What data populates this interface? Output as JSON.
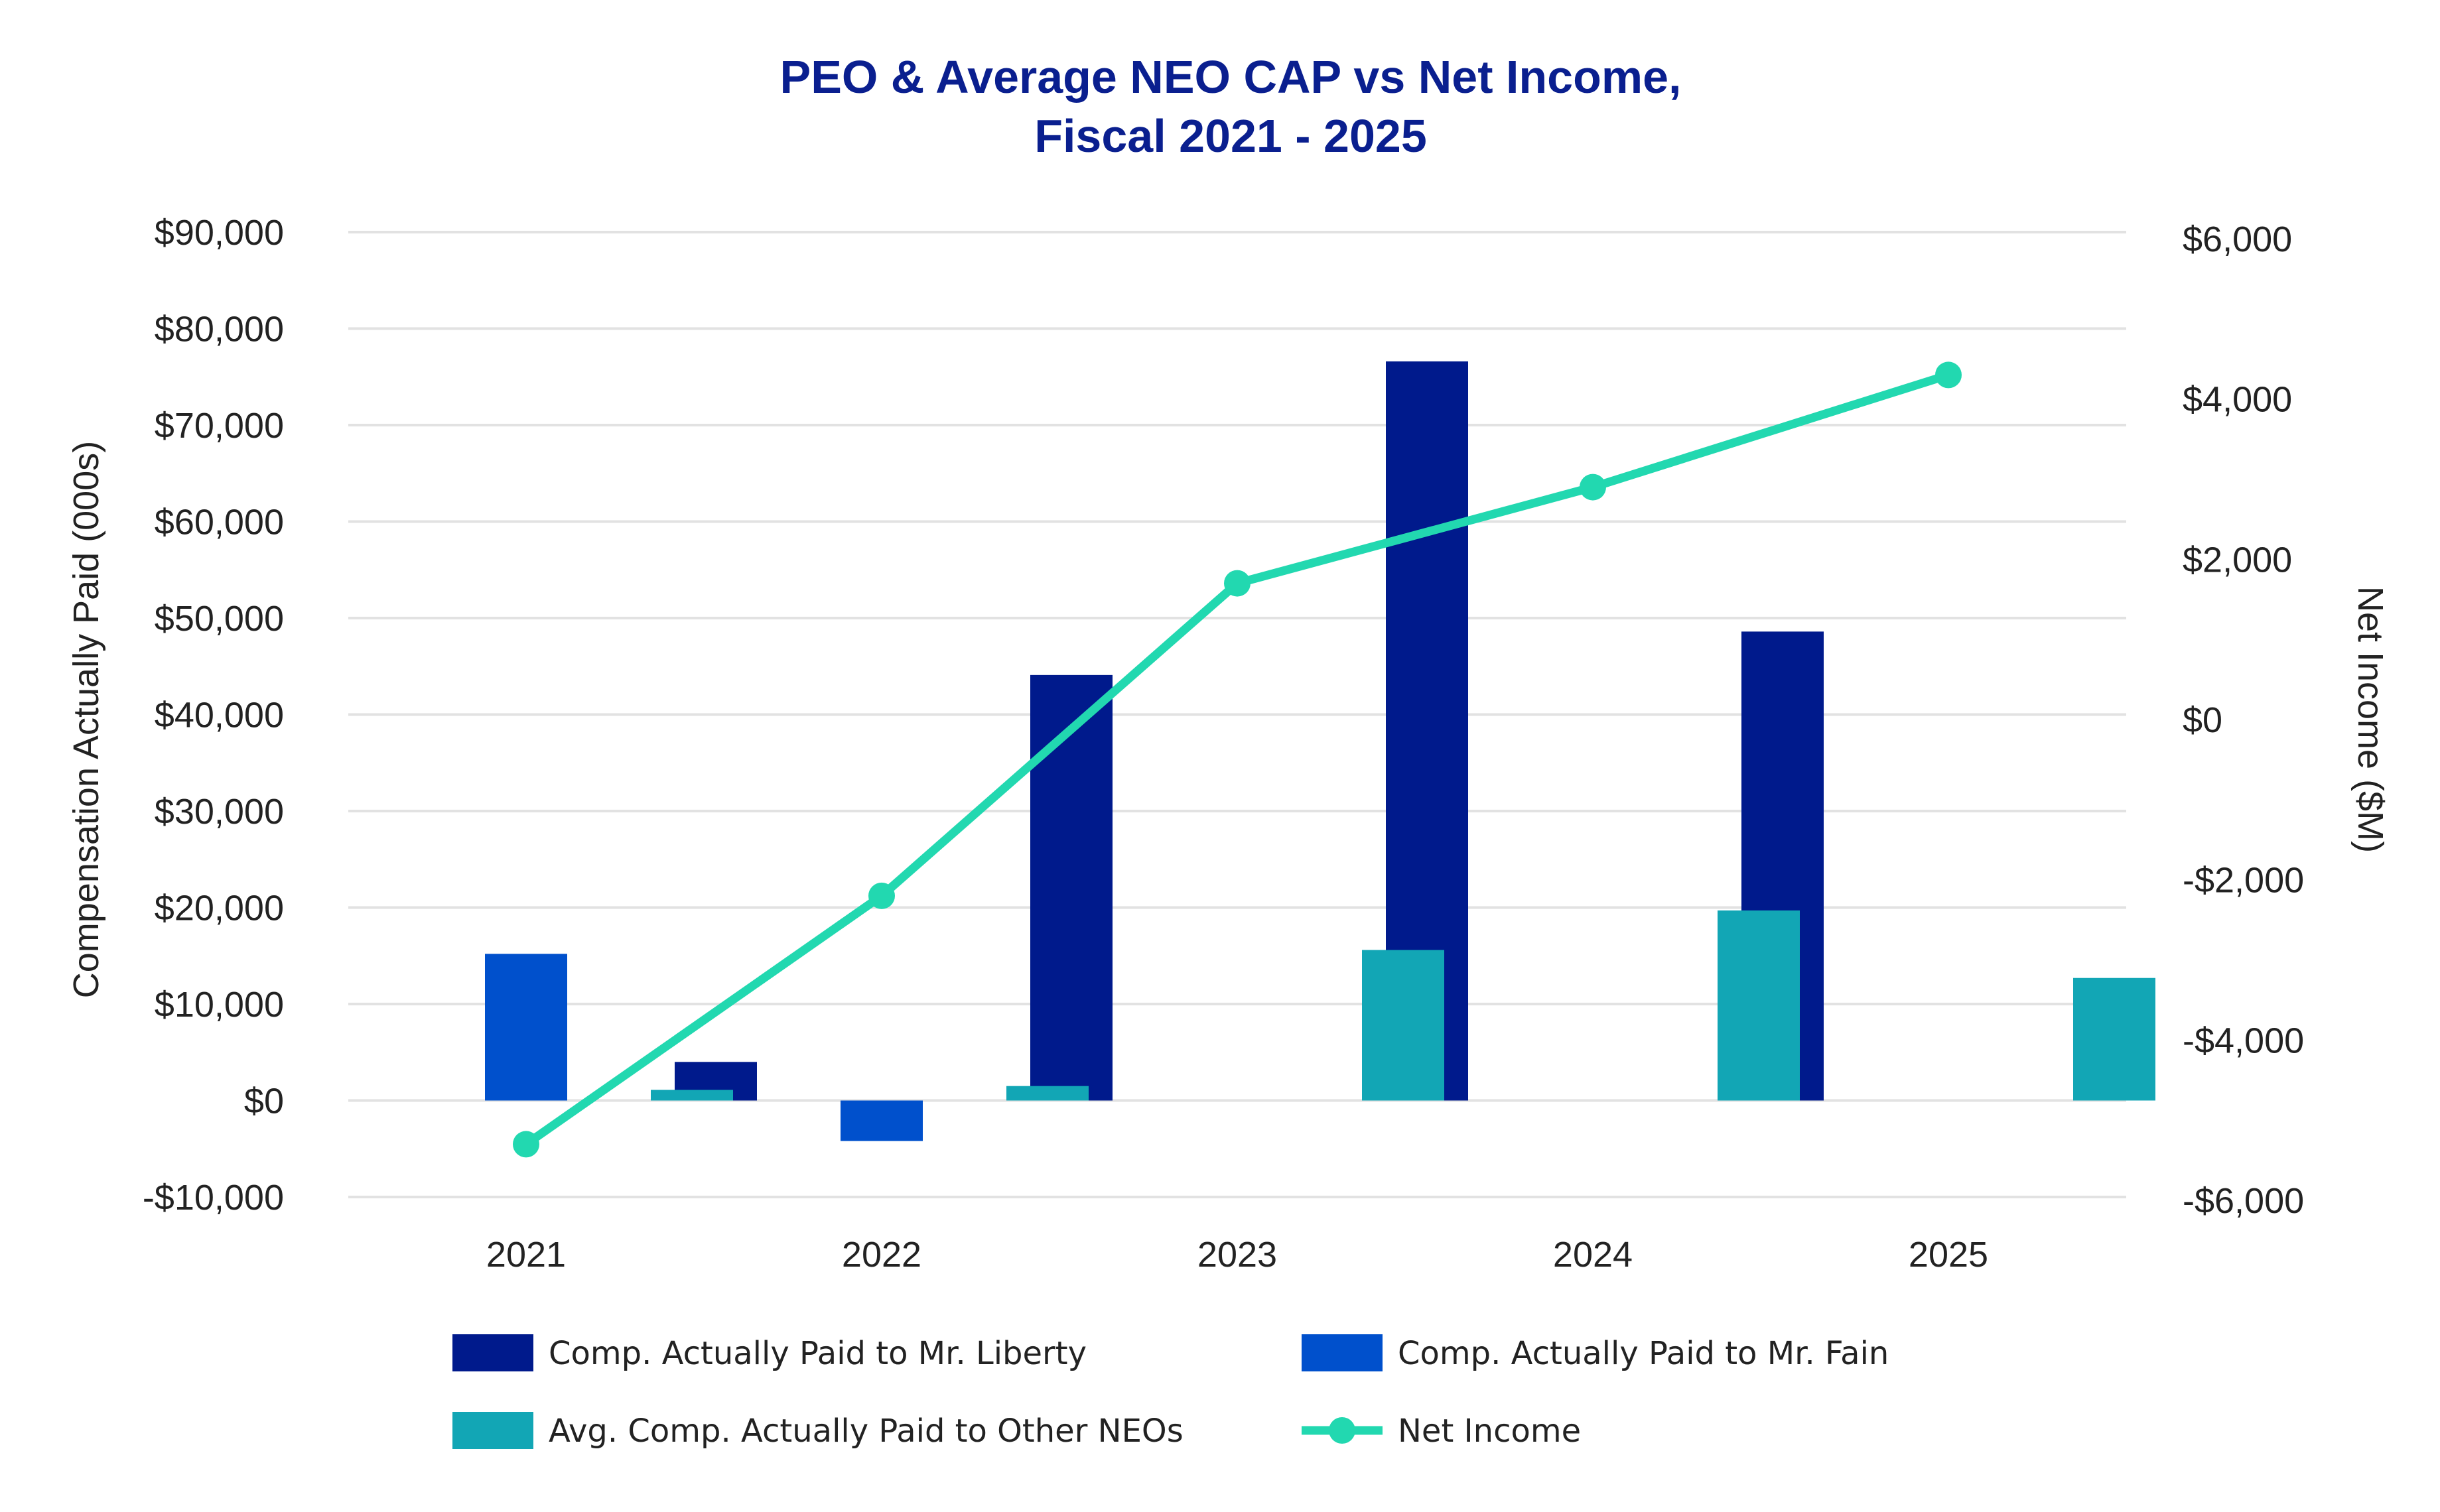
{
  "chart_data": {
    "type": "bar",
    "title": [
      "PEO & Average NEO CAP vs Net Income,",
      "Fiscal 2021 - 2025"
    ],
    "categories": [
      "2021",
      "2022",
      "2023",
      "2024",
      "2025"
    ],
    "ylabel": "Compensation Actually Paid (000s)",
    "y2label": "Net Income ($M)",
    "ylim": [
      -10000,
      90000
    ],
    "y2lim": [
      -6000,
      6000
    ],
    "yticks": [
      90000,
      80000,
      70000,
      60000,
      50000,
      40000,
      30000,
      20000,
      10000,
      0,
      -10000
    ],
    "ytick_labels": [
      "$90,000",
      "$80,000",
      "$70,000",
      "$60,000",
      "$50,000",
      "$40,000",
      "$30,000",
      "$20,000",
      "$10,000",
      "$0",
      "-$10,000"
    ],
    "y2ticks": [
      6000,
      4000,
      2000,
      0,
      -2000,
      -4000,
      -6000
    ],
    "y2tick_labels": [
      "$6,000",
      "$4,000",
      "$2,000",
      "$0",
      "-$2,000",
      "-$4,000",
      "-$6,000"
    ],
    "grid": true,
    "legend_position": "bottom",
    "series": [
      {
        "name": "Comp. Actually Paid to Mr. Liberty",
        "type": "bar",
        "axis": "left",
        "color": "#001a8c",
        "values": [
          null,
          4000,
          44100,
          76600,
          48600
        ]
      },
      {
        "name": "Comp. Actually Paid to Mr. Fain",
        "type": "bar",
        "axis": "left",
        "color": "#0050cc",
        "values": [
          15200,
          -4200,
          null,
          null,
          null
        ]
      },
      {
        "name": "Avg. Comp. Actually Paid to Other NEOs",
        "type": "bar",
        "axis": "left",
        "color": "#12a6b5",
        "values": [
          1100,
          1500,
          15600,
          19700,
          12700
        ]
      },
      {
        "name": "Net Income",
        "type": "line",
        "axis": "right",
        "color": "#22d8b0",
        "values": [
          -5300,
          -2200,
          1700,
          2900,
          4300
        ]
      }
    ]
  }
}
